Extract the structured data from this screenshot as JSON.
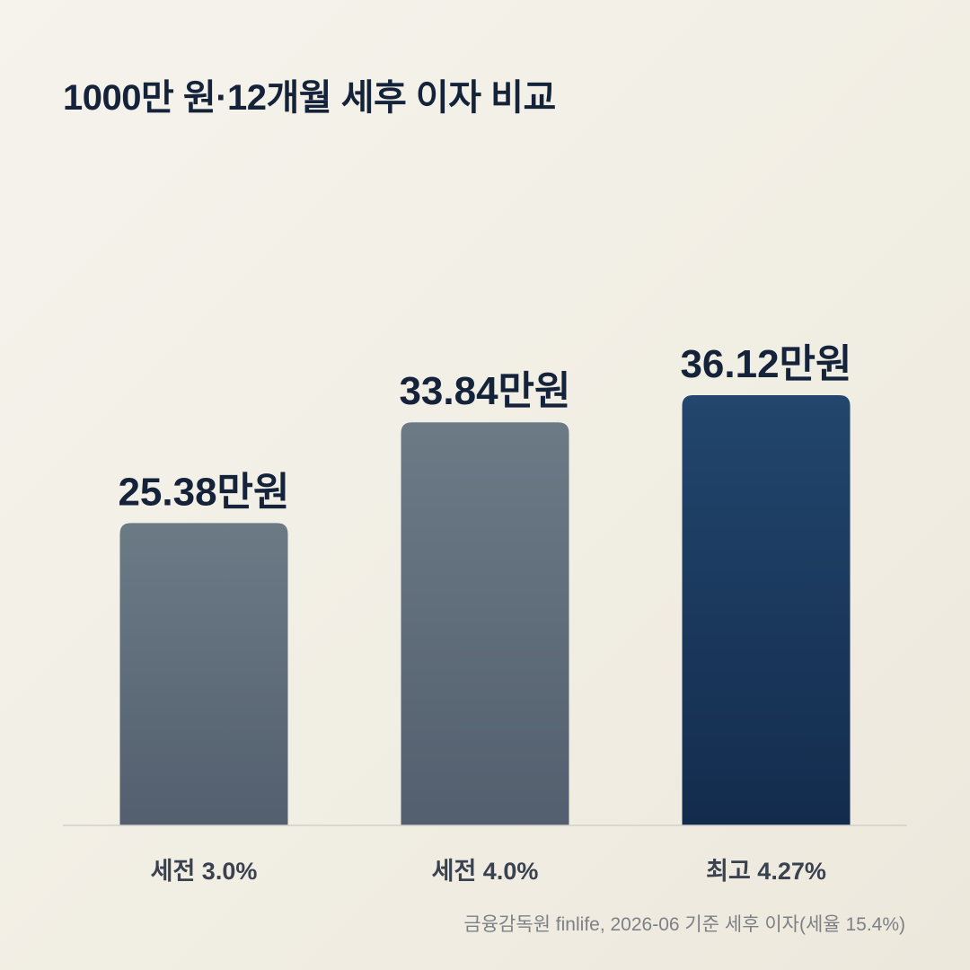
{
  "title": "1000만 원·12개월 세후 이자 비교",
  "source": "금융감독원 finlife, 2026-06 기준 세후 이자(세율 15.4%)",
  "colors": {
    "muted_top": "#6c7a86",
    "muted_bottom": "#535f6e",
    "accent_top": "#22466d",
    "accent_bottom": "#132c4d",
    "label": "#14233a",
    "category": "#3a4250",
    "baseline": "#cfd1cb"
  },
  "chart_data": {
    "type": "bar",
    "title": "1000만 원·12개월 세후 이자 비교",
    "categories": [
      "세전 3.0%",
      "세전 4.0%",
      "최고 4.27%"
    ],
    "values": [
      25.38,
      33.84,
      36.12
    ],
    "value_labels": [
      "25.38만원",
      "33.84만원",
      "36.12만원"
    ],
    "highlight": [
      false,
      false,
      true
    ],
    "ylim": [
      0,
      40
    ],
    "grid": false,
    "legend": "none"
  }
}
